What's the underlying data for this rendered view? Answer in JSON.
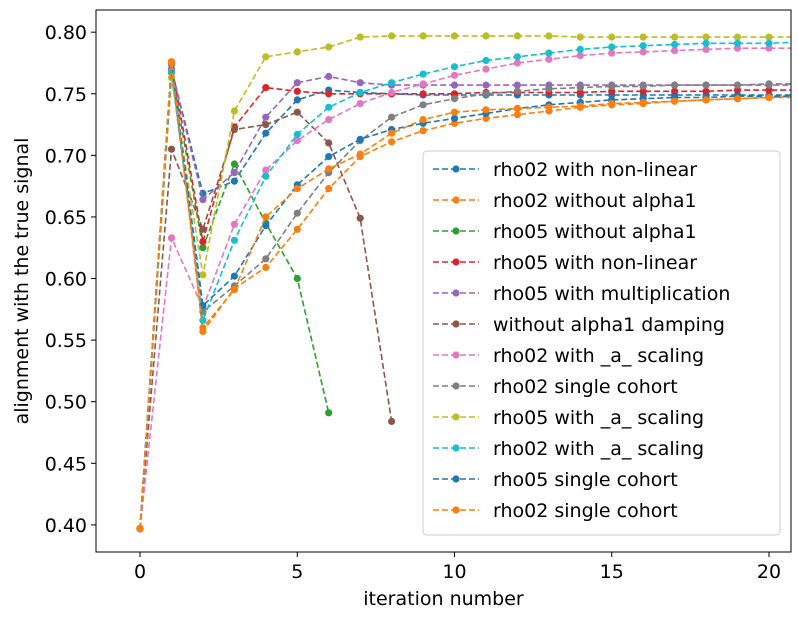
{
  "chart_data": {
    "type": "line",
    "xlabel": "iteration number",
    "ylabel": "alignment with the true signal",
    "xlim": [
      -1.4,
      20.7
    ],
    "ylim": [
      0.378,
      0.818
    ],
    "xticks": [
      "0",
      "5",
      "10",
      "15",
      "20"
    ],
    "yticks": [
      "0.40",
      "0.45",
      "0.50",
      "0.55",
      "0.60",
      "0.65",
      "0.70",
      "0.75",
      "0.80"
    ],
    "grid": false,
    "legend_position": "lower right",
    "series": [
      {
        "name": "rho02 with non-linear",
        "color": "#1f77b4",
        "x": [
          0,
          1,
          2,
          3,
          4,
          5,
          6,
          7,
          8,
          9,
          10,
          11,
          12,
          13,
          14,
          15,
          16,
          17,
          18,
          19,
          20,
          21
        ],
        "y": [
          0.397,
          0.77,
          0.669,
          0.679,
          0.718,
          0.745,
          0.753,
          0.751,
          0.75,
          0.749,
          0.749,
          0.749,
          0.749,
          0.749,
          0.749,
          0.749,
          0.749,
          0.749,
          0.749,
          0.749,
          0.749,
          0.749
        ]
      },
      {
        "name": "rho02 without alpha1",
        "color": "#ff7f0e",
        "x": [
          0,
          1,
          2,
          3,
          4,
          5,
          6,
          7,
          8,
          9,
          10,
          11,
          12,
          13,
          14,
          15,
          16,
          17,
          18,
          19,
          20,
          21
        ],
        "y": [
          0.397,
          0.776,
          0.557,
          0.592,
          0.609,
          0.64,
          0.673,
          0.699,
          0.711,
          0.72,
          0.726,
          0.73,
          0.733,
          0.736,
          0.739,
          0.741,
          0.742,
          0.744,
          0.745,
          0.746,
          0.747,
          0.748
        ]
      },
      {
        "name": "rho05 without alpha1",
        "color": "#2ca02c",
        "x": [
          0,
          1,
          2,
          3,
          4,
          5,
          6
        ],
        "y": [
          0.397,
          0.769,
          0.625,
          0.693,
          0.645,
          0.6,
          0.491
        ]
      },
      {
        "name": "rho05 with non-linear",
        "color": "#d62728",
        "x": [
          0,
          1,
          2,
          3,
          4,
          5,
          6,
          7,
          8,
          9,
          10,
          11,
          12,
          13,
          14,
          15,
          16,
          17,
          18,
          19,
          20,
          21
        ],
        "y": [
          0.397,
          0.775,
          0.63,
          0.723,
          0.755,
          0.752,
          0.75,
          0.75,
          0.75,
          0.75,
          0.75,
          0.751,
          0.751,
          0.751,
          0.751,
          0.752,
          0.752,
          0.752,
          0.752,
          0.753,
          0.753,
          0.753
        ]
      },
      {
        "name": "rho05 with multiplication",
        "color": "#9467bd",
        "x": [
          0,
          1,
          2,
          3,
          4,
          5,
          6,
          7,
          8,
          9,
          10,
          11,
          12,
          13,
          14,
          15,
          16,
          17,
          18,
          19,
          20,
          21
        ],
        "y": [
          0.397,
          0.77,
          0.664,
          0.686,
          0.731,
          0.759,
          0.764,
          0.759,
          0.757,
          0.757,
          0.757,
          0.757,
          0.757,
          0.757,
          0.757,
          0.757,
          0.757,
          0.757,
          0.757,
          0.757,
          0.757,
          0.757
        ]
      },
      {
        "name": "without alpha1 damping",
        "color": "#8c564b",
        "x": [
          0,
          1,
          2,
          3,
          4,
          5,
          6,
          7,
          8
        ],
        "y": [
          0.397,
          0.705,
          0.64,
          0.721,
          0.725,
          0.735,
          0.71,
          0.649,
          0.484
        ]
      },
      {
        "name": "rho02 with _a_ scaling",
        "color": "#e377c2",
        "x": [
          0,
          1,
          2,
          3,
          4,
          5,
          6,
          7,
          8,
          9,
          10,
          11,
          12,
          13,
          14,
          15,
          16,
          17,
          18,
          19,
          20,
          21
        ],
        "y": [
          0.397,
          0.633,
          0.576,
          0.644,
          0.688,
          0.712,
          0.729,
          0.742,
          0.751,
          0.758,
          0.765,
          0.77,
          0.775,
          0.778,
          0.781,
          0.783,
          0.784,
          0.785,
          0.786,
          0.787,
          0.787,
          0.787
        ]
      },
      {
        "name": "rho02 single cohort",
        "color": "#7f7f7f",
        "x": [
          0,
          1,
          2,
          3,
          4,
          5,
          6,
          7,
          8,
          9,
          10,
          11,
          12,
          13,
          14,
          15,
          16,
          17,
          18,
          19,
          20,
          21
        ],
        "y": [
          0.397,
          0.767,
          0.573,
          0.594,
          0.616,
          0.653,
          0.686,
          0.712,
          0.731,
          0.741,
          0.746,
          0.75,
          0.752,
          0.754,
          0.755,
          0.756,
          0.756,
          0.757,
          0.757,
          0.757,
          0.758,
          0.758
        ]
      },
      {
        "name": "rho05 with _a_ scaling",
        "color": "#bcbd22",
        "x": [
          0,
          1,
          2,
          3,
          4,
          5,
          6,
          7,
          8,
          9,
          10,
          11,
          12,
          13,
          14,
          15,
          16,
          17,
          18,
          19,
          20,
          21
        ],
        "y": [
          0.397,
          0.763,
          0.603,
          0.736,
          0.78,
          0.784,
          0.788,
          0.796,
          0.797,
          0.797,
          0.797,
          0.797,
          0.797,
          0.797,
          0.796,
          0.796,
          0.796,
          0.796,
          0.796,
          0.796,
          0.796,
          0.796
        ]
      },
      {
        "name": "rho02 with _a_ scaling",
        "color": "#17becf",
        "x": [
          0,
          1,
          2,
          3,
          4,
          5,
          6,
          7,
          8,
          9,
          10,
          11,
          12,
          13,
          14,
          15,
          16,
          17,
          18,
          19,
          20,
          21
        ],
        "y": [
          0.397,
          0.768,
          0.566,
          0.631,
          0.683,
          0.717,
          0.739,
          0.751,
          0.759,
          0.766,
          0.772,
          0.777,
          0.78,
          0.783,
          0.786,
          0.788,
          0.789,
          0.79,
          0.791,
          0.791,
          0.791,
          0.792
        ]
      },
      {
        "name": "rho05 single cohort",
        "color": "#1f77b4",
        "x": [
          0,
          1,
          2,
          3,
          4,
          5,
          6,
          7,
          8,
          9,
          10,
          11,
          12,
          13,
          14,
          15,
          16,
          17,
          18,
          19,
          20,
          21
        ],
        "y": [
          0.397,
          0.774,
          0.578,
          0.602,
          0.643,
          0.676,
          0.699,
          0.713,
          0.721,
          0.726,
          0.73,
          0.734,
          0.738,
          0.741,
          0.743,
          0.745,
          0.746,
          0.747,
          0.747,
          0.748,
          0.748,
          0.748
        ]
      },
      {
        "name": "rho02 single cohort",
        "color": "#ff7f0e",
        "x": [
          0,
          1,
          2,
          3,
          4,
          5,
          6,
          7,
          8,
          9,
          10,
          11,
          12,
          13,
          14,
          15,
          16,
          17,
          18,
          19,
          20,
          21
        ],
        "y": [
          0.397,
          0.775,
          0.56,
          0.591,
          0.65,
          0.673,
          0.689,
          0.701,
          0.718,
          0.729,
          0.735,
          0.737,
          0.738,
          0.739,
          0.74,
          0.742,
          0.743,
          0.744,
          0.745,
          0.746,
          0.747,
          0.747
        ]
      }
    ]
  }
}
